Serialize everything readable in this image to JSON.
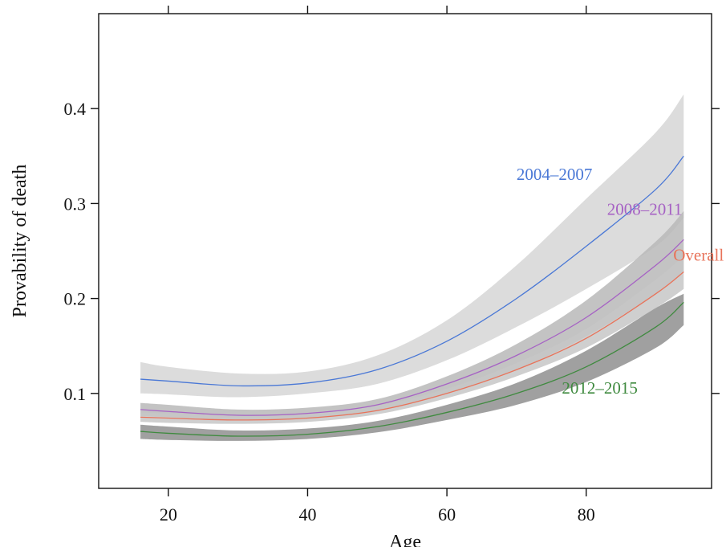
{
  "chart_data": {
    "type": "line",
    "xlabel": "Age",
    "ylabel": "Provability of death",
    "xlim": [
      10,
      98
    ],
    "ylim": [
      0.0,
      0.5
    ],
    "x_ticks": [
      20,
      40,
      60,
      80
    ],
    "y_ticks": [
      0.1,
      0.2,
      0.3,
      0.4
    ],
    "x_tick_labels": [
      "20",
      "40",
      "60",
      "80"
    ],
    "y_tick_labels": [
      "0.1",
      "0.2",
      "0.3",
      "0.4"
    ],
    "grid": false,
    "x": [
      16,
      20,
      30,
      40,
      50,
      60,
      70,
      80,
      90,
      94
    ],
    "series": [
      {
        "name": "2004–2007",
        "color": "#4a78d6",
        "band_color": "#d6d6d6",
        "values": [
          0.115,
          0.113,
          0.108,
          0.111,
          0.125,
          0.155,
          0.2,
          0.255,
          0.315,
          0.35
        ],
        "lower": [
          0.1,
          0.099,
          0.096,
          0.1,
          0.11,
          0.135,
          0.17,
          0.21,
          0.255,
          0.285
        ],
        "upper": [
          0.133,
          0.128,
          0.121,
          0.123,
          0.14,
          0.177,
          0.235,
          0.305,
          0.375,
          0.415
        ]
      },
      {
        "name": "2008–2011",
        "color": "#a662c4",
        "band_color": "#b8b8b8",
        "values": [
          0.083,
          0.081,
          0.077,
          0.079,
          0.088,
          0.11,
          0.14,
          0.18,
          0.235,
          0.262
        ],
        "lower": [
          0.076,
          0.075,
          0.072,
          0.074,
          0.082,
          0.1,
          0.125,
          0.16,
          0.205,
          0.228
        ],
        "upper": [
          0.09,
          0.088,
          0.083,
          0.085,
          0.094,
          0.118,
          0.152,
          0.198,
          0.26,
          0.292
        ]
      },
      {
        "name": "Overall",
        "color": "#e8735a",
        "band_color": "#c7c7c7",
        "values": [
          0.075,
          0.074,
          0.072,
          0.074,
          0.082,
          0.1,
          0.125,
          0.158,
          0.205,
          0.228
        ],
        "lower": [
          0.07,
          0.069,
          0.068,
          0.07,
          0.078,
          0.095,
          0.118,
          0.148,
          0.19,
          0.21
        ],
        "upper": [
          0.08,
          0.079,
          0.077,
          0.079,
          0.087,
          0.105,
          0.132,
          0.168,
          0.22,
          0.245
        ]
      },
      {
        "name": "2012–2015",
        "color": "#3f8a3f",
        "band_color": "#8f8f8f",
        "values": [
          0.06,
          0.058,
          0.055,
          0.057,
          0.065,
          0.08,
          0.1,
          0.128,
          0.17,
          0.196
        ],
        "lower": [
          0.052,
          0.051,
          0.05,
          0.052,
          0.059,
          0.072,
          0.088,
          0.112,
          0.148,
          0.172
        ],
        "upper": [
          0.067,
          0.065,
          0.061,
          0.063,
          0.071,
          0.088,
          0.111,
          0.145,
          0.19,
          0.205
        ]
      }
    ],
    "annotations": [
      {
        "text": "2004–2007",
        "series": 0,
        "x": 70,
        "y": 0.325,
        "anchor": "start"
      },
      {
        "text": "2008–2011",
        "series": 1,
        "x": 83,
        "y": 0.288,
        "anchor": "start"
      },
      {
        "text": "Overall",
        "series": 2,
        "x": 92.5,
        "y": 0.24,
        "anchor": "start"
      },
      {
        "text": "2012–2015",
        "series": 3,
        "x": 76.5,
        "y": 0.1,
        "anchor": "start"
      }
    ]
  }
}
